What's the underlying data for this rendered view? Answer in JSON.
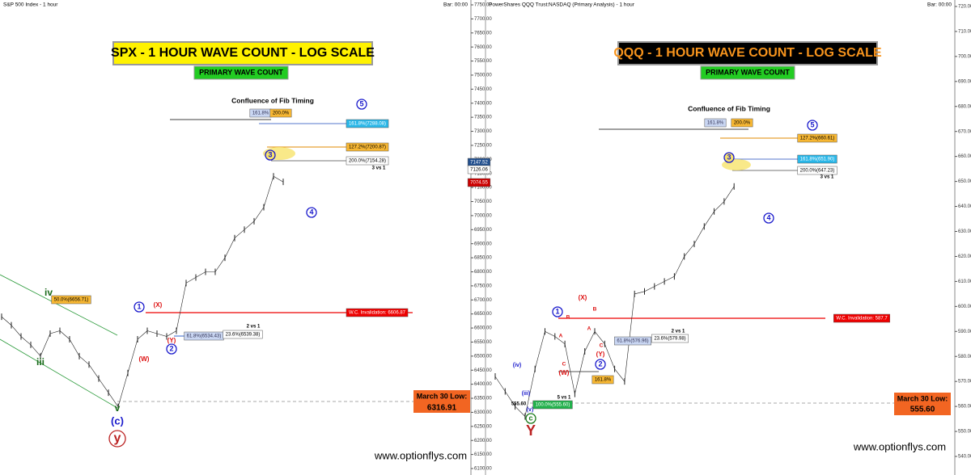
{
  "chart_data": [
    {
      "type": "line",
      "header": "S&P 500 Index - 1 hour",
      "bar_label": "Bar: 00:00",
      "series": [
        {
          "color": "#222222",
          "values": [
            6640,
            6610,
            6570,
            6540,
            6500,
            6580,
            6590,
            6560,
            6500,
            6470,
            6420,
            6370,
            6320,
            6440,
            6560,
            6590,
            6580,
            6570,
            6590,
            6760,
            6780,
            6800,
            6800,
            6850,
            6920,
            6950,
            6980,
            7030,
            7140,
            7120
          ]
        }
      ],
      "ylim": [
        6100,
        7750
      ],
      "yticks": [
        {
          "value": 6100,
          "label": "6100.00"
        },
        {
          "value": 6150,
          "label": "6150.00"
        },
        {
          "value": 6200,
          "label": "6200.00"
        },
        {
          "value": 6250,
          "label": "6250.00"
        },
        {
          "value": 6300,
          "label": "6300.00"
        },
        {
          "value": 6350,
          "label": "6350.00"
        },
        {
          "value": 6400,
          "label": "6400.00"
        },
        {
          "value": 6450,
          "label": "6450.00"
        },
        {
          "value": 6500,
          "label": "6500.00"
        },
        {
          "value": 6550,
          "label": "6550.00"
        },
        {
          "value": 6600,
          "label": "6600.00"
        },
        {
          "value": 6650,
          "label": "6650.00"
        },
        {
          "value": 6700,
          "label": "6700.00"
        },
        {
          "value": 6750,
          "label": "6750.00"
        },
        {
          "value": 6800,
          "label": "6800.00"
        },
        {
          "value": 6850,
          "label": "6850.00"
        },
        {
          "value": 6900,
          "label": "6900.00"
        },
        {
          "value": 6950,
          "label": "6950.00"
        },
        {
          "value": 7000,
          "label": "7000.00"
        },
        {
          "value": 7050,
          "label": "7050.00"
        },
        {
          "value": 7100,
          "label": "7100.00"
        },
        {
          "value": 7150,
          "label": "7150.00"
        },
        {
          "value": 7200,
          "label": "7200.00"
        },
        {
          "value": 7250,
          "label": "7250.00"
        },
        {
          "value": 7300,
          "label": "7300.00"
        },
        {
          "value": 7350,
          "label": "7350.00"
        },
        {
          "value": 7400,
          "label": "7400.00"
        },
        {
          "value": 7450,
          "label": "7450.00"
        },
        {
          "value": 7500,
          "label": "7500.00"
        },
        {
          "value": 7550,
          "label": "7550.00"
        },
        {
          "value": 7600,
          "label": "7600.00"
        },
        {
          "value": 7650,
          "label": "7650.00"
        },
        {
          "value": 7700,
          "label": "7700.00"
        },
        {
          "value": 7750,
          "label": "7750.00"
        }
      ],
      "log_scale": true,
      "annotations": [
        "SPX - 1  HOUR WAVE COUNT - LOG SCALE",
        "PRIMARY WAVE COUNT",
        "Confluence of Fib Timing",
        "161.8%",
        "200.0%",
        "161.8%(7288.08)",
        "127.2%(7200.87)",
        "200.0%(7154.28)",
        "3 vs 1",
        "5",
        "3",
        "4",
        "50.0%(6656.71)",
        "iv",
        "iii",
        "1",
        "(X)",
        "(W)",
        "(Y)",
        "2",
        "W.C. Invalidation: 6606.87",
        "2 vs 1",
        "61.8%(6534.43)",
        "23.6%(6539.38)",
        "v",
        "(c)",
        "y",
        "March 30 Low:",
        "6316.91",
        "www.optionflys.com",
        "7147.52",
        "7126.06",
        "7074.55"
      ]
    },
    {
      "type": "line",
      "header": "PowerShares QQQ Trust:NASDAQ (Primary Analysis) - 1 hour",
      "bar_label": "Bar: 00:00",
      "series": [
        {
          "color": "#222222",
          "values": [
            572,
            566,
            560,
            556,
            575,
            590,
            588,
            585,
            565,
            582,
            590,
            585,
            575,
            570,
            605,
            606,
            608,
            610,
            612,
            620,
            625,
            632,
            638,
            642,
            648
          ]
        }
      ],
      "ylim": [
        540,
        720
      ],
      "yticks": [
        {
          "value": 540,
          "label": "540.00"
        },
        {
          "value": 550,
          "label": "550.00"
        },
        {
          "value": 560,
          "label": "560.00"
        },
        {
          "value": 570,
          "label": "570.00"
        },
        {
          "value": 580,
          "label": "580.00"
        },
        {
          "value": 590,
          "label": "590.00"
        },
        {
          "value": 600,
          "label": "600.00"
        },
        {
          "value": 610,
          "label": "610.00"
        },
        {
          "value": 620,
          "label": "620.00"
        },
        {
          "value": 630,
          "label": "630.00"
        },
        {
          "value": 640,
          "label": "640.00"
        },
        {
          "value": 650,
          "label": "650.00"
        },
        {
          "value": 660,
          "label": "660.00"
        },
        {
          "value": 670,
          "label": "670.00"
        },
        {
          "value": 680,
          "label": "680.00"
        },
        {
          "value": 690,
          "label": "690.00"
        },
        {
          "value": 700,
          "label": "700.00"
        },
        {
          "value": 710,
          "label": "710.00"
        },
        {
          "value": 720,
          "label": "720.00"
        }
      ],
      "log_scale": true,
      "annotations": [
        "QQQ - 1 HOUR WAVE COUNT - LOG SCALE",
        "PRIMARY WAVE COUNT",
        "Confluence of Fib Timing",
        "161.8%",
        "200.0%",
        "127.2%(660.61)",
        "161.8%(651.90)",
        "200.0%(647.23)",
        "3 vs 1",
        "5",
        "3",
        "4",
        "1",
        "(X)",
        "(W)",
        "(Y)",
        "2",
        "(iv)",
        "(iii)",
        "(v)",
        "c",
        "Y",
        "W.C. Invalidation: 587.7",
        "2 vs 1",
        "61.8%(576.96)",
        "23.6%(579.98)",
        "161.8%",
        "5 vs 1",
        "100.0%(555.60)",
        "555.60",
        "March 30 Low:",
        "555.60",
        "www.optionflys.com",
        "A",
        "B",
        "C",
        "A",
        "B",
        "C"
      ]
    }
  ]
}
